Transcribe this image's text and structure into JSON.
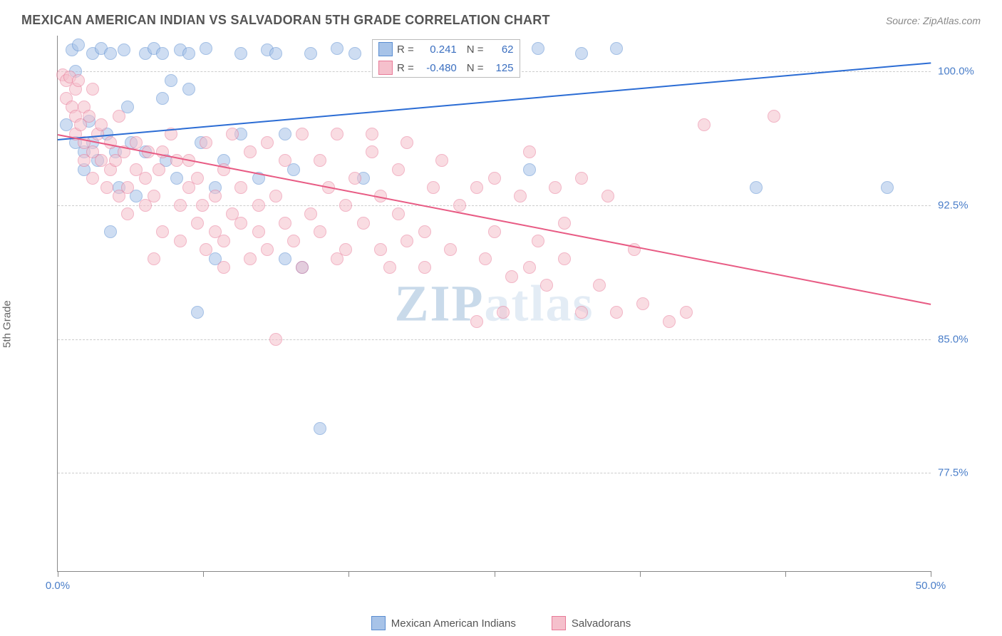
{
  "title": "MEXICAN AMERICAN INDIAN VS SALVADORAN 5TH GRADE CORRELATION CHART",
  "source": "Source: ZipAtlas.com",
  "ylabel": "5th Grade",
  "watermark_zip": "ZIP",
  "watermark_atlas": "atlas",
  "chart": {
    "type": "scatter",
    "xlim": [
      0,
      50
    ],
    "ylim": [
      72,
      102
    ],
    "xtick_positions": [
      0,
      8.33,
      16.67,
      25,
      33.33,
      41.67,
      50
    ],
    "xtick_labels": {
      "0": "0.0%",
      "50": "50.0%"
    },
    "ytick_positions": [
      77.5,
      85.0,
      92.5,
      100.0
    ],
    "ytick_labels": [
      "77.5%",
      "85.0%",
      "92.5%",
      "100.0%"
    ],
    "grid_color": "#cccccc",
    "background_color": "#ffffff",
    "marker_radius": 9,
    "marker_opacity": 0.55,
    "marker_stroke_width": 1.2,
    "series": [
      {
        "name": "Mexican American Indians",
        "color_fill": "#a7c3e8",
        "color_stroke": "#5a8dd1",
        "R": "0.241",
        "N": "62",
        "trend": {
          "x1": 0,
          "y1": 96.2,
          "x2": 50,
          "y2": 100.5,
          "color": "#2b6cd4",
          "width": 2
        },
        "points": [
          [
            0.5,
            97.0
          ],
          [
            0.8,
            101.2
          ],
          [
            1.0,
            96.0
          ],
          [
            1.0,
            100.0
          ],
          [
            1.2,
            101.5
          ],
          [
            1.5,
            94.5
          ],
          [
            1.5,
            95.5
          ],
          [
            1.8,
            97.2
          ],
          [
            2.0,
            96.0
          ],
          [
            2.0,
            101.0
          ],
          [
            2.3,
            95.0
          ],
          [
            2.5,
            101.3
          ],
          [
            2.8,
            96.5
          ],
          [
            3.0,
            91.0
          ],
          [
            3.0,
            101.0
          ],
          [
            3.3,
            95.5
          ],
          [
            3.5,
            93.5
          ],
          [
            3.8,
            101.2
          ],
          [
            4.0,
            98.0
          ],
          [
            4.2,
            96.0
          ],
          [
            4.5,
            93.0
          ],
          [
            5.0,
            101.0
          ],
          [
            5.0,
            95.5
          ],
          [
            5.5,
            101.3
          ],
          [
            6.0,
            98.5
          ],
          [
            6.0,
            101.0
          ],
          [
            6.2,
            95.0
          ],
          [
            6.5,
            99.5
          ],
          [
            6.8,
            94.0
          ],
          [
            7.0,
            101.2
          ],
          [
            7.5,
            101.0
          ],
          [
            7.5,
            99.0
          ],
          [
            8.0,
            86.5
          ],
          [
            8.2,
            96.0
          ],
          [
            8.5,
            101.3
          ],
          [
            9.0,
            89.5
          ],
          [
            9.0,
            93.5
          ],
          [
            9.5,
            95.0
          ],
          [
            10.5,
            101.0
          ],
          [
            10.5,
            96.5
          ],
          [
            11.5,
            94.0
          ],
          [
            12.0,
            101.2
          ],
          [
            12.5,
            101.0
          ],
          [
            13.0,
            96.5
          ],
          [
            13.0,
            89.5
          ],
          [
            13.5,
            94.5
          ],
          [
            14.0,
            89.0
          ],
          [
            14.5,
            101.0
          ],
          [
            15.0,
            80.0
          ],
          [
            16.0,
            101.3
          ],
          [
            17.0,
            101.0
          ],
          [
            17.5,
            94.0
          ],
          [
            18.5,
            101.3
          ],
          [
            21.0,
            101.0
          ],
          [
            23.0,
            101.0
          ],
          [
            27.0,
            94.5
          ],
          [
            27.5,
            101.3
          ],
          [
            30.0,
            101.0
          ],
          [
            32.0,
            101.3
          ],
          [
            40.0,
            93.5
          ],
          [
            47.5,
            93.5
          ]
        ]
      },
      {
        "name": "Salvadorans",
        "color_fill": "#f5c0cc",
        "color_stroke": "#e87a98",
        "R": "-0.480",
        "N": "125",
        "trend": {
          "x1": 0,
          "y1": 96.5,
          "x2": 50,
          "y2": 87.0,
          "color": "#e85b84",
          "width": 2
        },
        "points": [
          [
            0.3,
            99.8
          ],
          [
            0.5,
            99.5
          ],
          [
            0.5,
            98.5
          ],
          [
            0.7,
            99.7
          ],
          [
            0.8,
            98.0
          ],
          [
            1.0,
            99.0
          ],
          [
            1.0,
            97.5
          ],
          [
            1.0,
            96.5
          ],
          [
            1.2,
            99.5
          ],
          [
            1.3,
            97.0
          ],
          [
            1.5,
            98.0
          ],
          [
            1.5,
            96.0
          ],
          [
            1.5,
            95.0
          ],
          [
            1.8,
            97.5
          ],
          [
            2.0,
            99.0
          ],
          [
            2.0,
            95.5
          ],
          [
            2.0,
            94.0
          ],
          [
            2.3,
            96.5
          ],
          [
            2.5,
            97.0
          ],
          [
            2.5,
            95.0
          ],
          [
            2.8,
            93.5
          ],
          [
            3.0,
            94.5
          ],
          [
            3.0,
            96.0
          ],
          [
            3.3,
            95.0
          ],
          [
            3.5,
            93.0
          ],
          [
            3.5,
            97.5
          ],
          [
            3.8,
            95.5
          ],
          [
            4.0,
            93.5
          ],
          [
            4.0,
            92.0
          ],
          [
            4.5,
            94.5
          ],
          [
            4.5,
            96.0
          ],
          [
            5.0,
            92.5
          ],
          [
            5.0,
            94.0
          ],
          [
            5.2,
            95.5
          ],
          [
            5.5,
            89.5
          ],
          [
            5.5,
            93.0
          ],
          [
            5.8,
            94.5
          ],
          [
            6.0,
            95.5
          ],
          [
            6.0,
            91.0
          ],
          [
            6.5,
            96.5
          ],
          [
            6.8,
            95.0
          ],
          [
            7.0,
            92.5
          ],
          [
            7.0,
            90.5
          ],
          [
            7.5,
            93.5
          ],
          [
            7.5,
            95.0
          ],
          [
            8.0,
            94.0
          ],
          [
            8.0,
            91.5
          ],
          [
            8.3,
            92.5
          ],
          [
            8.5,
            96.0
          ],
          [
            8.5,
            90.0
          ],
          [
            9.0,
            93.0
          ],
          [
            9.0,
            91.0
          ],
          [
            9.5,
            94.5
          ],
          [
            9.5,
            90.5
          ],
          [
            9.5,
            89.0
          ],
          [
            10.0,
            92.0
          ],
          [
            10.0,
            96.5
          ],
          [
            10.5,
            91.5
          ],
          [
            10.5,
            93.5
          ],
          [
            11.0,
            95.5
          ],
          [
            11.0,
            89.5
          ],
          [
            11.5,
            91.0
          ],
          [
            11.5,
            92.5
          ],
          [
            12.0,
            96.0
          ],
          [
            12.0,
            90.0
          ],
          [
            12.5,
            93.0
          ],
          [
            12.5,
            85.0
          ],
          [
            13.0,
            91.5
          ],
          [
            13.0,
            95.0
          ],
          [
            13.5,
            90.5
          ],
          [
            14.0,
            96.5
          ],
          [
            14.0,
            89.0
          ],
          [
            14.5,
            92.0
          ],
          [
            15.0,
            91.0
          ],
          [
            15.0,
            95.0
          ],
          [
            15.5,
            93.5
          ],
          [
            16.0,
            89.5
          ],
          [
            16.0,
            96.5
          ],
          [
            16.5,
            90.0
          ],
          [
            16.5,
            92.5
          ],
          [
            17.0,
            94.0
          ],
          [
            17.5,
            91.5
          ],
          [
            18.0,
            95.5
          ],
          [
            18.0,
            96.5
          ],
          [
            18.5,
            90.0
          ],
          [
            18.5,
            93.0
          ],
          [
            19.0,
            89.0
          ],
          [
            19.5,
            94.5
          ],
          [
            19.5,
            92.0
          ],
          [
            20.0,
            90.5
          ],
          [
            20.0,
            96.0
          ],
          [
            21.0,
            91.0
          ],
          [
            21.0,
            89.0
          ],
          [
            21.5,
            93.5
          ],
          [
            22.0,
            95.0
          ],
          [
            22.5,
            90.0
          ],
          [
            23.0,
            92.5
          ],
          [
            24.0,
            86.0
          ],
          [
            24.0,
            93.5
          ],
          [
            24.5,
            89.5
          ],
          [
            25.0,
            91.0
          ],
          [
            25.0,
            94.0
          ],
          [
            25.5,
            86.5
          ],
          [
            26.0,
            88.5
          ],
          [
            26.5,
            93.0
          ],
          [
            27.0,
            89.0
          ],
          [
            27.0,
            95.5
          ],
          [
            27.5,
            90.5
          ],
          [
            28.0,
            88.0
          ],
          [
            28.5,
            93.5
          ],
          [
            29.0,
            91.5
          ],
          [
            29.0,
            89.5
          ],
          [
            30.0,
            94.0
          ],
          [
            30.0,
            86.5
          ],
          [
            31.0,
            88.0
          ],
          [
            31.5,
            93.0
          ],
          [
            32.0,
            86.5
          ],
          [
            33.0,
            90.0
          ],
          [
            33.5,
            87.0
          ],
          [
            35.0,
            86.0
          ],
          [
            36.0,
            86.5
          ],
          [
            37.0,
            97.0
          ],
          [
            41.0,
            97.5
          ]
        ]
      }
    ],
    "top_legend": {
      "rows": [
        {
          "swatch_fill": "#a7c3e8",
          "swatch_stroke": "#5a8dd1",
          "R_label": "R =",
          "R_val": "0.241",
          "N_label": "N =",
          "N_val": "62"
        },
        {
          "swatch_fill": "#f5c0cc",
          "swatch_stroke": "#e87a98",
          "R_label": "R =",
          "R_val": "-0.480",
          "N_label": "N =",
          "N_val": "125"
        }
      ]
    },
    "bottom_legend": [
      {
        "swatch_fill": "#a7c3e8",
        "swatch_stroke": "#5a8dd1",
        "label": "Mexican American Indians"
      },
      {
        "swatch_fill": "#f5c0cc",
        "swatch_stroke": "#e87a98",
        "label": "Salvadorans"
      }
    ]
  }
}
